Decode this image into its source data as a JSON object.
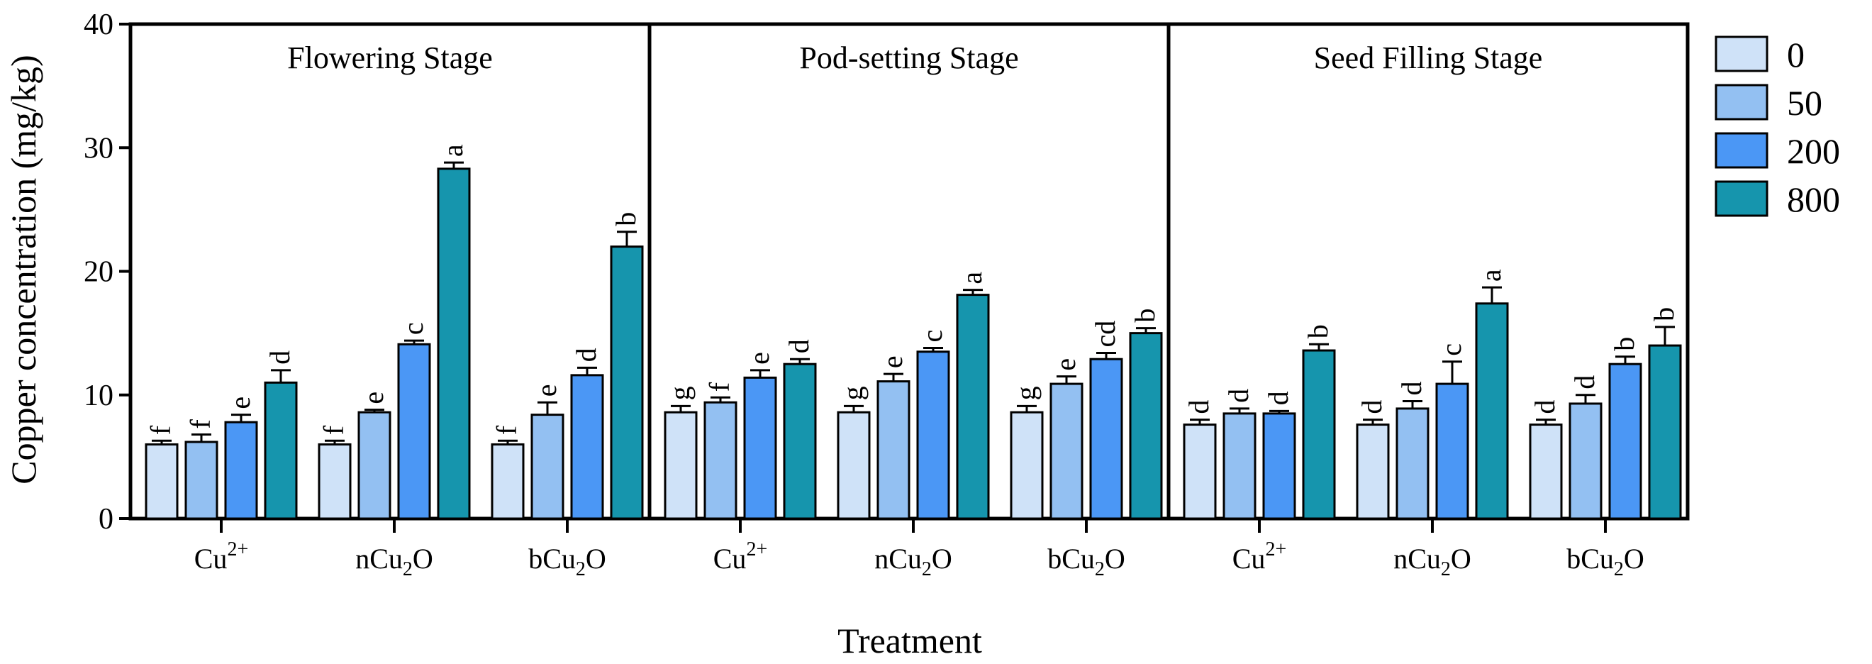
{
  "chart_data": {
    "type": "bar",
    "ylabel": "Copper concentration (mg/kg)",
    "xlabel": "Treatment",
    "ylim": [
      0,
      40
    ],
    "yticks": [
      0,
      10,
      20,
      30,
      40
    ],
    "legend": {
      "position": "right",
      "entries": [
        {
          "label": "0",
          "color": "#cfe2f8"
        },
        {
          "label": "50",
          "color": "#93c0f2"
        },
        {
          "label": "200",
          "color": "#4b97f5"
        },
        {
          "label": "800",
          "color": "#1695ad"
        }
      ]
    },
    "panels": [
      {
        "title": "Flowering Stage",
        "groups": [
          {
            "base": "Cu",
            "sub": "",
            "sup": "2+",
            "values": [
              6.0,
              6.2,
              7.8,
              11.0
            ],
            "errors": [
              0.3,
              0.6,
              0.6,
              1.0
            ],
            "letters": [
              "f",
              "f",
              "e",
              "d"
            ]
          },
          {
            "base": "nCu",
            "sub": "2",
            "sup": "",
            "values": [
              6.0,
              8.6,
              14.1,
              28.3
            ],
            "errors": [
              0.3,
              0.2,
              0.3,
              0.5
            ],
            "letters": [
              "f",
              "e",
              "c",
              "a"
            ]
          },
          {
            "base": "bCu",
            "sub": "2",
            "sup": "",
            "values": [
              6.0,
              8.4,
              11.6,
              22.0
            ],
            "errors": [
              0.3,
              1.0,
              0.6,
              1.2
            ],
            "letters": [
              "f",
              "e",
              "d",
              "b"
            ]
          }
        ]
      },
      {
        "title": "Pod-setting Stage",
        "groups": [
          {
            "base": "Cu",
            "sub": "",
            "sup": "2+",
            "values": [
              8.6,
              9.4,
              11.4,
              12.5
            ],
            "errors": [
              0.5,
              0.4,
              0.6,
              0.4
            ],
            "letters": [
              "g",
              "f",
              "e",
              "d"
            ]
          },
          {
            "base": "nCu",
            "sub": "2",
            "sup": "",
            "values": [
              8.6,
              11.1,
              13.5,
              18.1
            ],
            "errors": [
              0.5,
              0.6,
              0.3,
              0.4
            ],
            "letters": [
              "g",
              "e",
              "c",
              "a"
            ]
          },
          {
            "base": "bCu",
            "sub": "2",
            "sup": "",
            "values": [
              8.6,
              10.9,
              12.9,
              15.0
            ],
            "errors": [
              0.5,
              0.6,
              0.5,
              0.4
            ],
            "letters": [
              "g",
              "e",
              "cd",
              "b"
            ]
          }
        ]
      },
      {
        "title": "Seed Filling Stage",
        "groups": [
          {
            "base": "Cu",
            "sub": "",
            "sup": "2+",
            "values": [
              7.6,
              8.5,
              8.5,
              13.6
            ],
            "errors": [
              0.4,
              0.4,
              0.2,
              0.5
            ],
            "letters": [
              "d",
              "d",
              "d",
              "b"
            ]
          },
          {
            "base": "nCu",
            "sub": "2",
            "sup": "",
            "values": [
              7.6,
              8.9,
              10.9,
              17.4
            ],
            "errors": [
              0.4,
              0.6,
              1.8,
              1.3
            ],
            "letters": [
              "d",
              "d",
              "c",
              "a"
            ]
          },
          {
            "base": "bCu",
            "sub": "2",
            "sup": "",
            "values": [
              7.6,
              9.3,
              12.5,
              14.0
            ],
            "errors": [
              0.4,
              0.7,
              0.6,
              1.5
            ],
            "letters": [
              "d",
              "d",
              "b",
              "b"
            ]
          }
        ]
      }
    ],
    "group_label_suffix": "O"
  }
}
